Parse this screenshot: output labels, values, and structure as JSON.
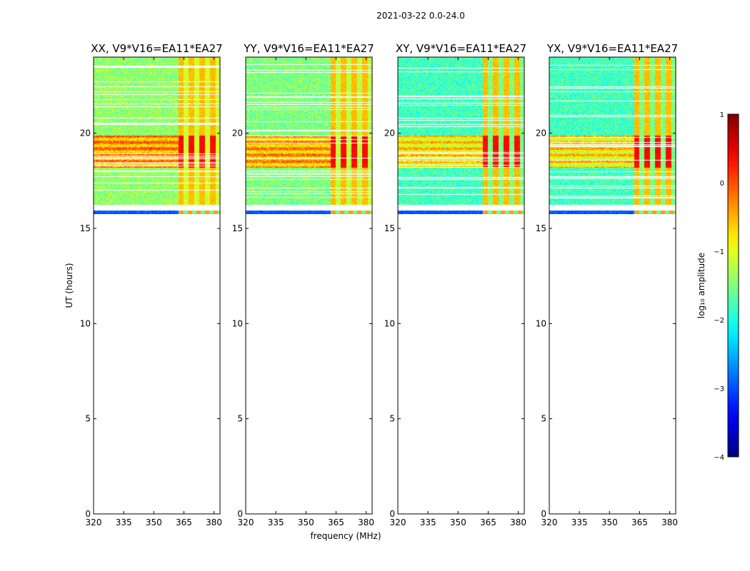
{
  "figure": {
    "suptitle": "2021-03-22 0.0-24.0"
  },
  "chart_data": {
    "type": "heatmap",
    "xlabel": "frequency (MHz)",
    "ylabel": "UT (hours)",
    "xlim": [
      320,
      383
    ],
    "ylim": [
      0,
      24
    ],
    "xticks": [
      320,
      335,
      350,
      365,
      380
    ],
    "yticks": [
      0,
      5,
      10,
      15,
      20
    ],
    "data_time_range": [
      15.75,
      24
    ],
    "rfi_band_MHz": [
      362,
      383
    ],
    "bright_band_UT": [
      18.2,
      19.9
    ],
    "panels": [
      {
        "title": "XX, V9*V16=EA11*EA27",
        "polarization": "XX",
        "mean_log_amp": -1.4
      },
      {
        "title": "YY, V9*V16=EA11*EA27",
        "polarization": "YY",
        "mean_log_amp": -1.5
      },
      {
        "title": "XY, V9*V16=EA11*EA27",
        "polarization": "XY",
        "mean_log_amp": -1.8
      },
      {
        "title": "YX, V9*V16=EA11*EA27",
        "polarization": "YX",
        "mean_log_amp": -1.8
      }
    ],
    "colorbar": {
      "label": "log₁₀ amplitude",
      "min": -4,
      "max": 1,
      "ticks": [
        1,
        0,
        -1,
        -2,
        -3,
        -4
      ],
      "tick_labels": [
        "1",
        "0",
        "−1",
        "−2",
        "−3",
        "−4"
      ],
      "colormap": "jet"
    }
  }
}
